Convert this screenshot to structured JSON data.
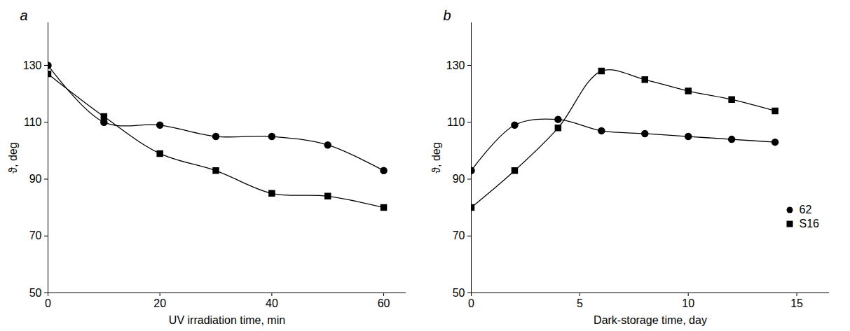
{
  "chart_data": [
    {
      "type": "line",
      "title": "a",
      "xlabel": "UV irradiation time, min",
      "ylabel": "ϑ, deg",
      "x": [
        0,
        10,
        20,
        30,
        40,
        50,
        60
      ],
      "series": [
        {
          "name": "62",
          "color": "#000000",
          "marker": "circle",
          "values": [
            130,
            110,
            109,
            105,
            105,
            102,
            93
          ]
        },
        {
          "name": "S16",
          "color": "#000000",
          "marker": "square",
          "values": [
            127,
            112,
            99,
            93,
            85,
            84,
            80
          ]
        }
      ],
      "xlim": [
        0,
        64
      ],
      "xticks": [
        0,
        20,
        40,
        60
      ],
      "ylim": [
        50,
        145
      ],
      "yticks": [
        50,
        70,
        90,
        110,
        130
      ],
      "grid": false
    },
    {
      "type": "line",
      "title": "b",
      "xlabel": "Dark-storage time, day",
      "ylabel": "ϑ, deg",
      "x": [
        0,
        2,
        4,
        6,
        8,
        10,
        12,
        14
      ],
      "series": [
        {
          "name": "62",
          "color": "#000000",
          "marker": "circle",
          "values": [
            93,
            109,
            111,
            107,
            106,
            105,
            104,
            103
          ]
        },
        {
          "name": "S16",
          "color": "#000000",
          "marker": "square",
          "values": [
            80,
            93,
            108,
            128,
            125,
            121,
            118,
            114
          ]
        }
      ],
      "xlim": [
        0,
        16.5
      ],
      "xticks": [
        0,
        5,
        10,
        15
      ],
      "ylim": [
        50,
        145
      ],
      "yticks": [
        50,
        70,
        90,
        110,
        130
      ],
      "grid": false,
      "legend": "bottom-right"
    }
  ]
}
